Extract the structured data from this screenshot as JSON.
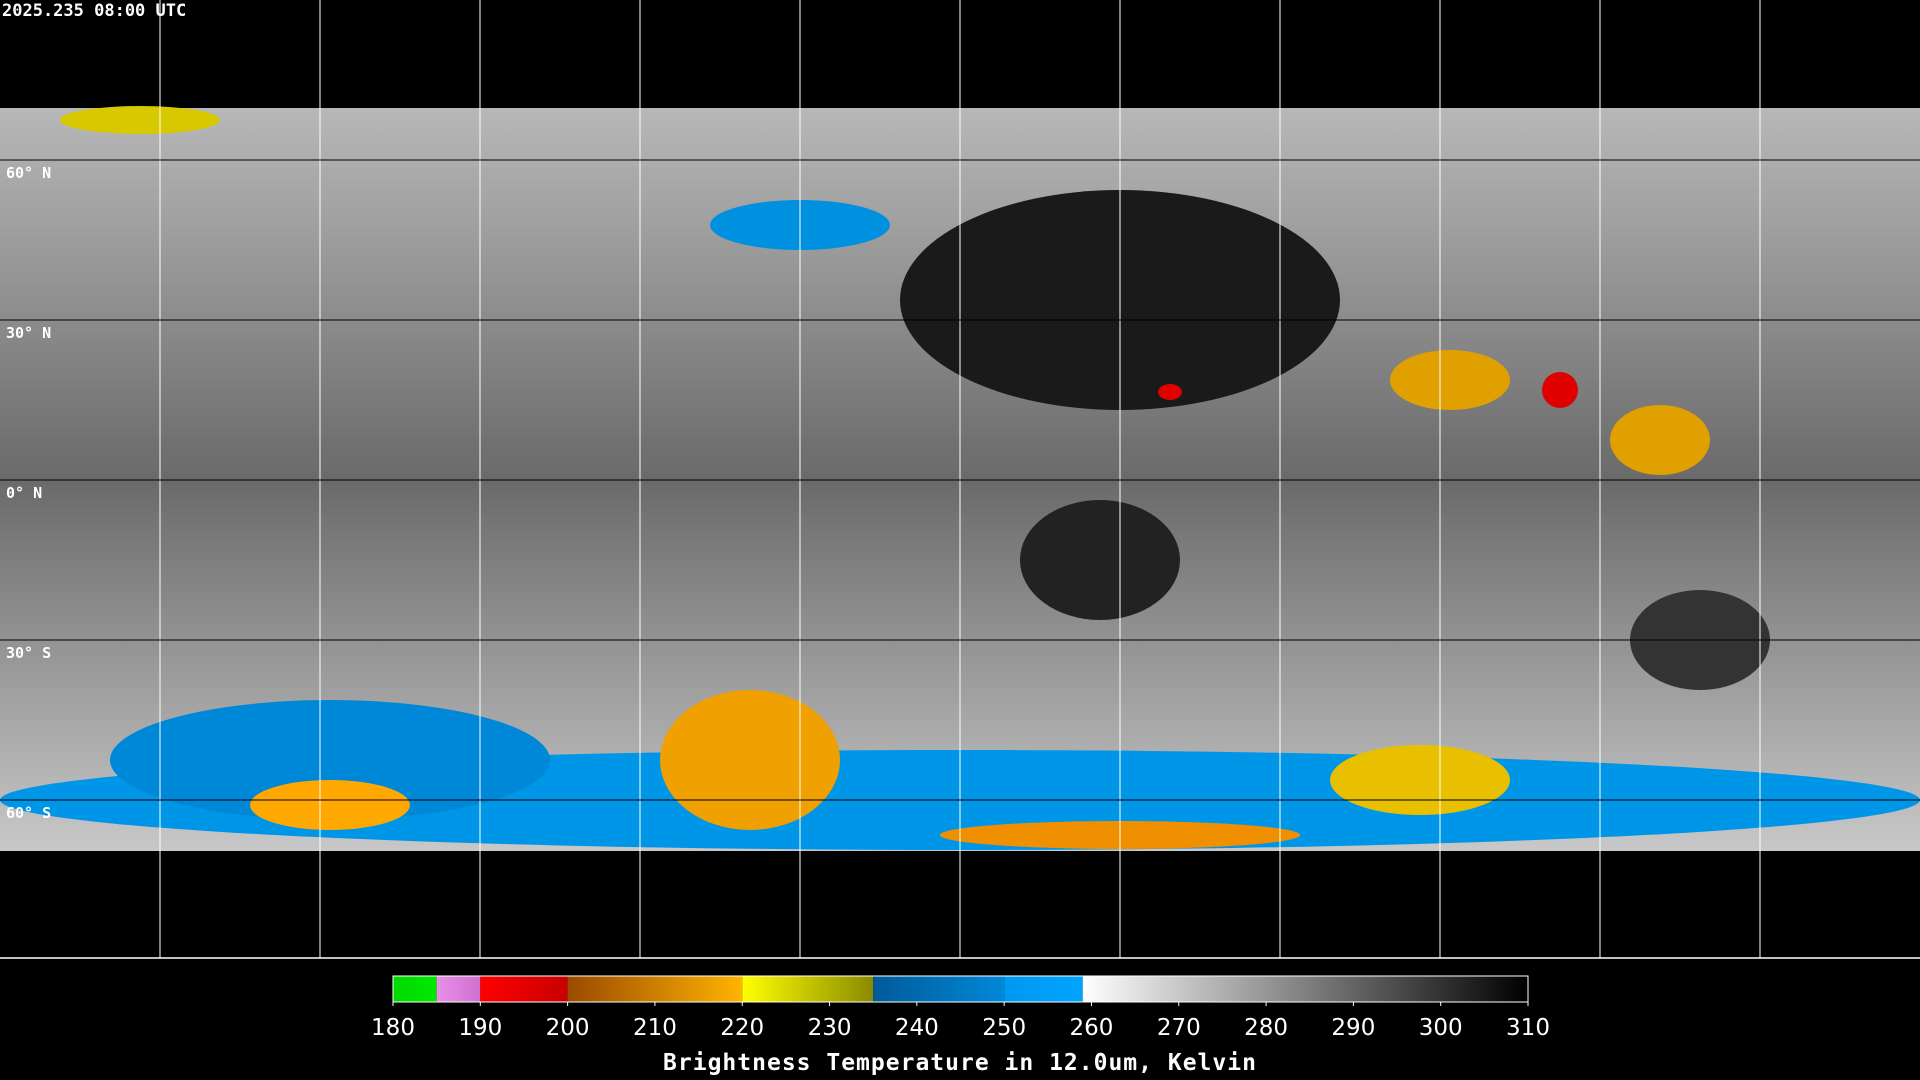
{
  "header": {
    "timestamp": "2025.235 08:00 UTC"
  },
  "latitude_labels": [
    "60° N",
    "30° N",
    "0° N",
    "30° S",
    "60° S"
  ],
  "colorbar": {
    "title": "Brightness Temperature in 12.0um, Kelvin",
    "lim": [
      180,
      310
    ],
    "ticks": [
      180,
      190,
      200,
      210,
      220,
      230,
      240,
      250,
      260,
      270,
      280,
      290,
      300,
      310
    ],
    "segments": [
      {
        "from": 180,
        "to": 185,
        "colors": [
          "#00d800",
          "#00e800"
        ]
      },
      {
        "from": 185,
        "to": 190,
        "colors": [
          "#e890e8",
          "#d070d0"
        ]
      },
      {
        "from": 190,
        "to": 200,
        "colors": [
          "#ff0000",
          "#c80000"
        ]
      },
      {
        "from": 200,
        "to": 220,
        "colors": [
          "#9a4a00",
          "#ffb400"
        ]
      },
      {
        "from": 220,
        "to": 235,
        "colors": [
          "#ffff00",
          "#8a8a00"
        ]
      },
      {
        "from": 235,
        "to": 250,
        "colors": [
          "#005a9a",
          "#0088d8"
        ]
      },
      {
        "from": 250,
        "to": 259,
        "colors": [
          "#0098f0",
          "#00a4ff"
        ]
      },
      {
        "from": 259,
        "to": 310,
        "colors": [
          "#ffffff",
          "#000000"
        ]
      }
    ]
  }
}
